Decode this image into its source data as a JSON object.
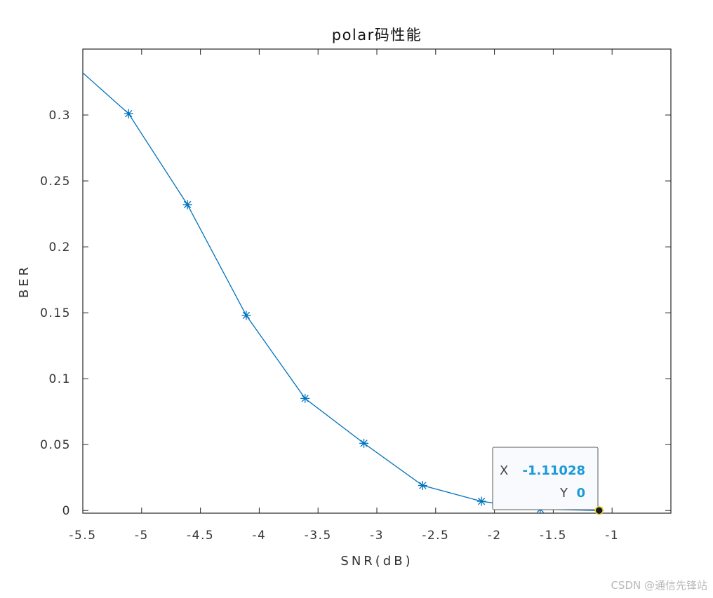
{
  "chart_data": {
    "type": "line",
    "title": "polar码性能",
    "xlabel": "SNR(dB)",
    "ylabel": "BER",
    "xlim": [
      -5.5,
      -0.5
    ],
    "ylim": [
      -0.002,
      0.35
    ],
    "xticks": [
      -5.5,
      -5,
      -4.5,
      -4,
      -3.5,
      -3,
      -2.5,
      -2,
      -1.5,
      -1
    ],
    "xtick_labels": [
      "-5.5",
      "-5",
      "-4.5",
      "-4",
      "-3.5",
      "-3",
      "-2.5",
      "-2",
      "-1.5",
      "-1"
    ],
    "yticks": [
      0,
      0.05,
      0.1,
      0.15,
      0.2,
      0.25,
      0.3
    ],
    "ytick_labels": [
      "0",
      "0.05",
      "0.1",
      "0.15",
      "0.2",
      "0.25",
      "0.3"
    ],
    "grid": false,
    "line_x": [
      -5.5
    ],
    "line_y": [
      0.332
    ],
    "series": [
      {
        "marker": "asterisk",
        "color": "#0072bd",
        "x": [
          -5.11028,
          -4.61028,
          -4.11028,
          -3.61028,
          -3.11028,
          -2.61028,
          -2.11028,
          -1.61028,
          -1.11028
        ],
        "y": [
          0.301,
          0.232,
          0.148,
          0.085,
          0.051,
          0.019,
          0.007,
          0.001,
          0
        ]
      }
    ],
    "datatip": {
      "x_key": "X",
      "x_value": "-1.11028",
      "y_key": "Y",
      "y_value": "0",
      "point_x": -1.11028,
      "point_y": 0,
      "value_color": "#1a9ad6"
    }
  },
  "watermark": "CSDN @通信先锋站"
}
